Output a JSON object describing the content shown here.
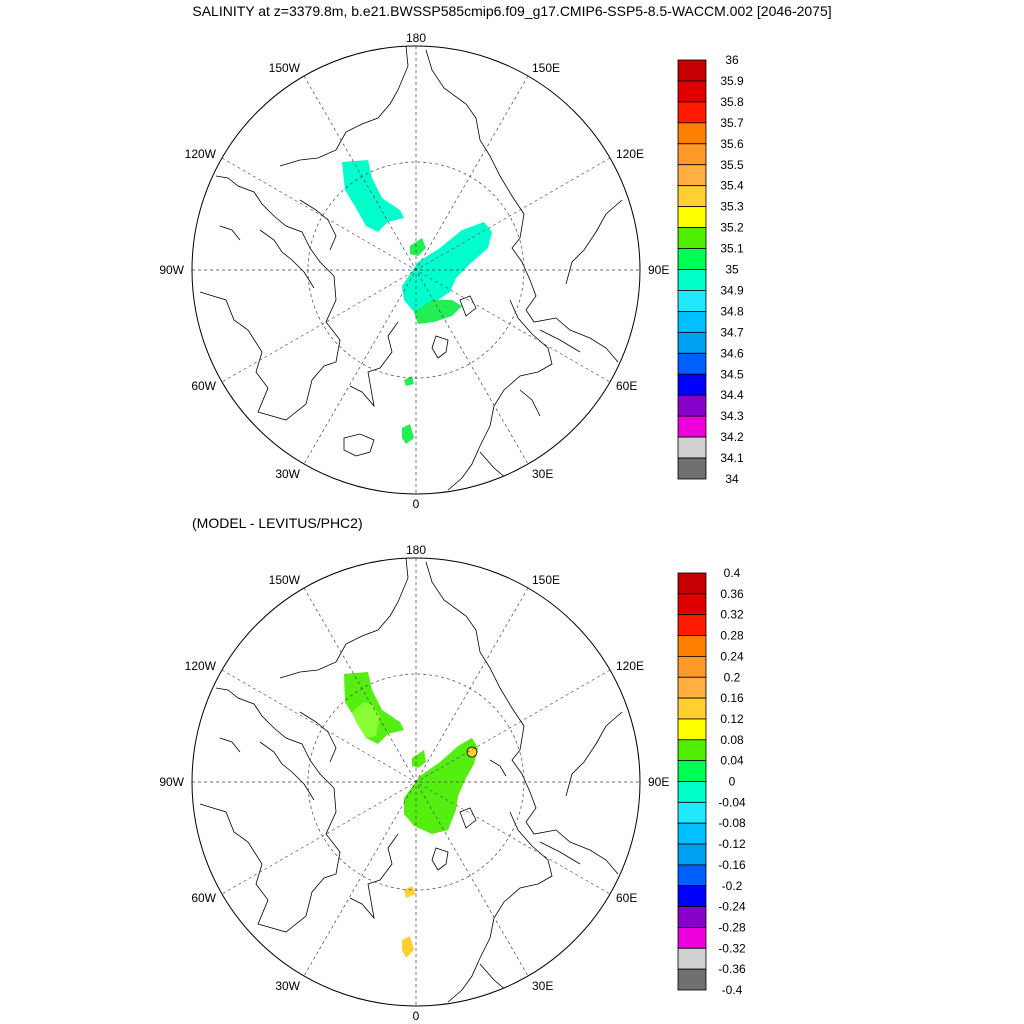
{
  "title": "SALINITY at z=3379.8m, b.e21.BWSSP585cmip6.f09_g17.CMIP6-SSP5-8.5-WACCM.002 [2046-2075]",
  "subtitle": "(MODEL - LEVITUS/PHC2)",
  "longitude_labels": {
    "top": "180",
    "bottom": "0",
    "left": "90W",
    "right": "90E",
    "upper_left_1": "150W",
    "upper_left_2": "120W",
    "upper_right_1": "150E",
    "upper_right_2": "120E",
    "lower_left_1": "60W",
    "lower_left_2": "30W",
    "lower_right_1": "60E",
    "lower_right_2": "30E"
  },
  "colorbar_top": {
    "labels": [
      "36",
      "35.9",
      "35.8",
      "35.7",
      "35.6",
      "35.5",
      "35.4",
      "35.3",
      "35.2",
      "35.1",
      "35",
      "34.9",
      "34.8",
      "34.7",
      "34.6",
      "34.5",
      "34.4",
      "34.3",
      "34.2",
      "34.1",
      "34"
    ],
    "colors": [
      "#c40000",
      "#e00000",
      "#ff1a00",
      "#ff8000",
      "#ff9a2a",
      "#ffb040",
      "#ffd030",
      "#ffff00",
      "#50ee00",
      "#00ff55",
      "#00ffc8",
      "#20e8ff",
      "#00c0ff",
      "#00a0f0",
      "#0060ff",
      "#0000ff",
      "#8800cc",
      "#ee00dd",
      "#d0d0d0",
      "#707070"
    ]
  },
  "colorbar_bottom": {
    "labels": [
      "0.4",
      "0.36",
      "0.32",
      "0.28",
      "0.24",
      "0.2",
      "0.16",
      "0.12",
      "0.08",
      "0.04",
      "0",
      "-0.04",
      "-0.08",
      "-0.12",
      "-0.16",
      "-0.2",
      "-0.24",
      "-0.28",
      "-0.32",
      "-0.36",
      "-0.4"
    ],
    "colors": [
      "#c40000",
      "#e00000",
      "#ff1a00",
      "#ff8000",
      "#ff9a2a",
      "#ffb040",
      "#ffd030",
      "#ffff00",
      "#50ee00",
      "#00ff55",
      "#00ffc8",
      "#20e8ff",
      "#00c0ff",
      "#00a0f0",
      "#0060ff",
      "#0000ff",
      "#8800cc",
      "#ee00dd",
      "#d0d0d0",
      "#707070"
    ]
  },
  "top_map_fill_colors": {
    "main": "#00ffcc",
    "green": "#22ee55"
  },
  "bottom_map_fill_colors": {
    "main": "#55ee11",
    "light": "#88ff33",
    "yellow": "#ffd030"
  }
}
